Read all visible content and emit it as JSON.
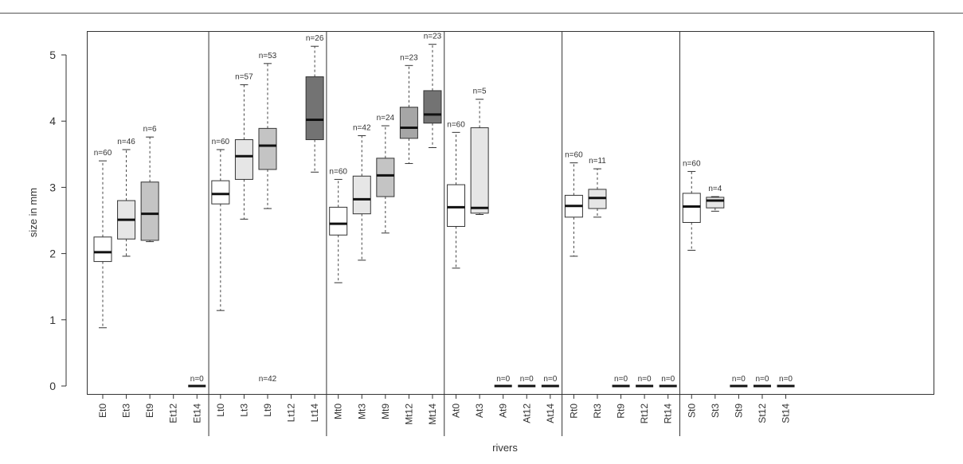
{
  "chart_data": {
    "type": "boxplot",
    "xlabel": "rivers",
    "ylabel": "size in mm",
    "ylim": [
      0,
      5.3
    ],
    "yticks": [
      0,
      1,
      2,
      3,
      4,
      5
    ],
    "groups": [
      {
        "boxes": [
          {
            "label": "Et0",
            "n": "n=60",
            "min": 0.88,
            "q1": 1.88,
            "median": 2.02,
            "q3": 2.25,
            "max": 3.4,
            "fill": "#ffffff"
          },
          {
            "label": "Et3",
            "n": "n=46",
            "min": 1.96,
            "q1": 2.22,
            "median": 2.51,
            "q3": 2.8,
            "max": 3.57,
            "fill": "#e6e6e6"
          },
          {
            "label": "Et9",
            "n": "n=6",
            "min": 2.18,
            "q1": 2.2,
            "median": 2.6,
            "q3": 3.08,
            "max": 3.76,
            "fill": "#c4c4c4"
          },
          {
            "label": "Et12",
            "n": null
          },
          {
            "label": "Et14",
            "n": "n=0",
            "empty": true
          }
        ]
      },
      {
        "note": "n=42",
        "boxes": [
          {
            "label": "Lt0",
            "n": "n=60",
            "min": 1.14,
            "q1": 2.75,
            "median": 2.9,
            "q3": 3.1,
            "max": 3.57,
            "fill": "#ffffff"
          },
          {
            "label": "Lt3",
            "n": "n=57",
            "min": 2.52,
            "q1": 3.12,
            "median": 3.47,
            "q3": 3.72,
            "max": 4.55,
            "fill": "#e6e6e6"
          },
          {
            "label": "Lt9",
            "n": "n=53",
            "min": 2.68,
            "q1": 3.27,
            "median": 3.63,
            "q3": 3.89,
            "max": 4.87,
            "fill": "#c4c4c4"
          },
          {
            "label": "Lt12",
            "n": null
          },
          {
            "label": "Lt14",
            "n": "n=26",
            "min": 3.23,
            "q1": 3.72,
            "median": 4.02,
            "q3": 4.67,
            "max": 5.13,
            "fill": "#737373"
          }
        ]
      },
      {
        "boxes": [
          {
            "label": "Mt0",
            "n": "n=60",
            "min": 1.56,
            "q1": 2.28,
            "median": 2.45,
            "q3": 2.7,
            "max": 3.12,
            "fill": "#ffffff"
          },
          {
            "label": "Mt3",
            "n": "n=42",
            "min": 1.9,
            "q1": 2.6,
            "median": 2.82,
            "q3": 3.17,
            "max": 3.78,
            "fill": "#e6e6e6"
          },
          {
            "label": "Mt9",
            "n": "n=24",
            "min": 2.31,
            "q1": 2.86,
            "median": 3.18,
            "q3": 3.44,
            "max": 3.93,
            "fill": "#c4c4c4"
          },
          {
            "label": "Mt12",
            "n": "n=23",
            "min": 3.36,
            "q1": 3.74,
            "median": 3.9,
            "q3": 4.21,
            "max": 4.84,
            "fill": "#a6a6a6"
          },
          {
            "label": "Mt14",
            "n": "n=23",
            "min": 3.6,
            "q1": 3.97,
            "median": 4.1,
            "q3": 4.46,
            "max": 5.16,
            "fill": "#737373"
          }
        ]
      },
      {
        "boxes": [
          {
            "label": "At0",
            "n": "n=60",
            "min": 1.78,
            "q1": 2.41,
            "median": 2.7,
            "q3": 3.04,
            "max": 3.83,
            "fill": "#ffffff"
          },
          {
            "label": "At3",
            "n": "n=5",
            "min": 2.59,
            "q1": 2.61,
            "median": 2.69,
            "q3": 3.9,
            "max": 4.33,
            "fill": "#e6e6e6"
          },
          {
            "label": "At9",
            "n": "n=0",
            "empty": true
          },
          {
            "label": "At12",
            "n": "n=0",
            "empty": true
          },
          {
            "label": "At14",
            "n": "n=0",
            "empty": true
          }
        ]
      },
      {
        "boxes": [
          {
            "label": "Rt0",
            "n": "n=60",
            "min": 1.96,
            "q1": 2.55,
            "median": 2.72,
            "q3": 2.88,
            "max": 3.37,
            "fill": "#ffffff"
          },
          {
            "label": "Rt3",
            "n": "n=11",
            "min": 2.55,
            "q1": 2.68,
            "median": 2.84,
            "q3": 2.97,
            "max": 3.28,
            "fill": "#e6e6e6"
          },
          {
            "label": "Rt9",
            "n": "n=0",
            "empty": true
          },
          {
            "label": "Rt12",
            "n": "n=0",
            "empty": true
          },
          {
            "label": "Rt14",
            "n": "n=0",
            "empty": true
          }
        ]
      },
      {
        "boxes": [
          {
            "label": "St0",
            "n": "n=60",
            "min": 2.05,
            "q1": 2.47,
            "median": 2.71,
            "q3": 2.91,
            "max": 3.24,
            "fill": "#ffffff"
          },
          {
            "label": "St3",
            "n": "n=4",
            "min": 2.64,
            "q1": 2.69,
            "median": 2.8,
            "q3": 2.85,
            "max": 2.86,
            "fill": "#e6e6e6"
          },
          {
            "label": "St9",
            "n": "n=0",
            "empty": true
          },
          {
            "label": "St12",
            "n": "n=0",
            "empty": true
          },
          {
            "label": "St14",
            "n": "n=0",
            "empty": true
          }
        ]
      }
    ]
  }
}
